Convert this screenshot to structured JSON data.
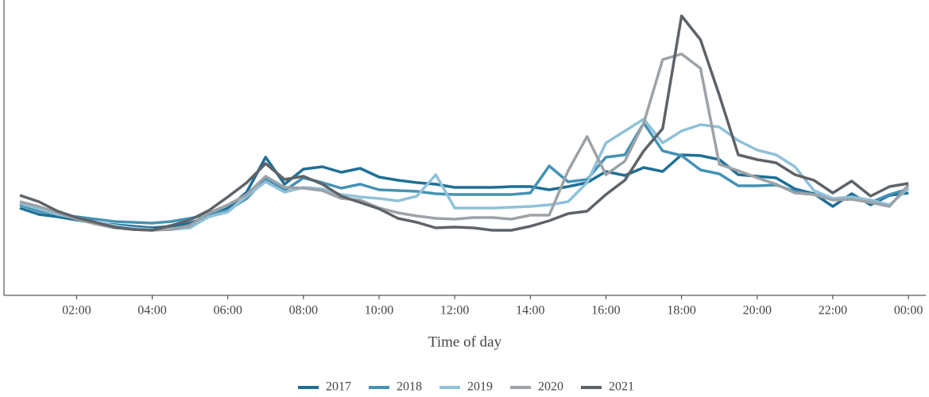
{
  "chart_data": {
    "type": "line",
    "xlabel": "Time of day",
    "x": [
      0.5,
      1,
      1.5,
      2,
      2.5,
      3,
      3.5,
      4,
      4.5,
      5,
      5.5,
      6,
      6.5,
      7,
      7.5,
      8,
      8.5,
      9,
      9.5,
      10,
      10.5,
      11,
      11.5,
      12,
      12.5,
      13,
      13.5,
      14,
      14.5,
      15,
      15.5,
      16,
      16.5,
      17,
      17.5,
      18,
      18.5,
      19,
      19.5,
      20,
      20.5,
      21,
      21.5,
      22,
      22.5,
      23,
      23.5,
      24
    ],
    "xlim": [
      0.08,
      24.46
    ],
    "xticks": [
      {
        "value": 2,
        "label": "02:00"
      },
      {
        "value": 4,
        "label": "04:00"
      },
      {
        "value": 6,
        "label": "06:00"
      },
      {
        "value": 8,
        "label": "08:00"
      },
      {
        "value": 10,
        "label": "10:00"
      },
      {
        "value": 12,
        "label": "12:00"
      },
      {
        "value": 14,
        "label": "14:00"
      },
      {
        "value": 16,
        "label": "16:00"
      },
      {
        "value": 18,
        "label": "18:00"
      },
      {
        "value": 20,
        "label": "20:00"
      },
      {
        "value": 22,
        "label": "22:00"
      },
      {
        "value": 24,
        "label": "00:00"
      }
    ],
    "ylim": [
      0,
      355
    ],
    "series": [
      {
        "name": "2017",
        "color": "#1f6f95",
        "values": [
          110,
          102,
          99,
          95,
          91,
          89,
          87,
          85,
          87,
          91,
          100,
          110,
          130,
          174,
          140,
          159,
          162,
          155,
          160,
          149,
          145,
          142,
          140,
          136,
          136,
          136,
          137,
          137,
          133,
          137,
          142,
          156,
          151,
          161,
          156,
          177,
          176,
          171,
          152,
          150,
          148,
          134,
          128,
          112,
          128,
          114,
          126,
          129
        ]
      },
      {
        "name": "2018",
        "color": "#4592b5",
        "values": [
          114,
          106,
          102,
          99,
          96,
          93,
          92,
          91,
          93,
          97,
          102,
          107,
          122,
          147,
          132,
          148,
          142,
          135,
          140,
          133,
          132,
          131,
          128,
          127,
          127,
          127,
          127,
          129,
          163,
          143,
          146,
          174,
          177,
          217,
          182,
          176,
          158,
          153,
          138,
          138,
          139,
          131,
          127,
          122,
          122,
          117,
          127,
          134
        ]
      },
      {
        "name": "2019",
        "color": "#8fc1d9",
        "values": [
          116,
          109,
          102,
          97,
          92,
          88,
          85,
          83,
          83,
          85,
          99,
          105,
          125,
          143,
          130,
          136,
          134,
          127,
          124,
          122,
          119,
          125,
          152,
          110,
          110,
          110,
          111,
          112,
          114,
          118,
          142,
          192,
          207,
          222,
          192,
          207,
          215,
          212,
          195,
          183,
          177,
          162,
          132,
          122,
          124,
          120,
          114,
          135
        ]
      },
      {
        "name": "2020",
        "color": "#9da2a7",
        "values": [
          118,
          112,
          104,
          96,
          90,
          85,
          83,
          82,
          83,
          88,
          104,
          114,
          127,
          150,
          136,
          135,
          132,
          122,
          120,
          110,
          104,
          100,
          97,
          96,
          98,
          98,
          96,
          101,
          101,
          157,
          200,
          152,
          169,
          217,
          297,
          304,
          286,
          165,
          157,
          148,
          140,
          129,
          127,
          120,
          121,
          117,
          112,
          139
        ]
      },
      {
        "name": "2021",
        "color": "#5e6368",
        "values": [
          126,
          118,
          106,
          98,
          92,
          86,
          83,
          82,
          88,
          95,
          107,
          124,
          142,
          166,
          146,
          150,
          140,
          125,
          117,
          109,
          97,
          92,
          85,
          86,
          85,
          82,
          82,
          87,
          94,
          103,
          106,
          127,
          145,
          182,
          210,
          352,
          322,
          252,
          177,
          171,
          167,
          152,
          145,
          129,
          144,
          125,
          137,
          141
        ]
      }
    ]
  }
}
